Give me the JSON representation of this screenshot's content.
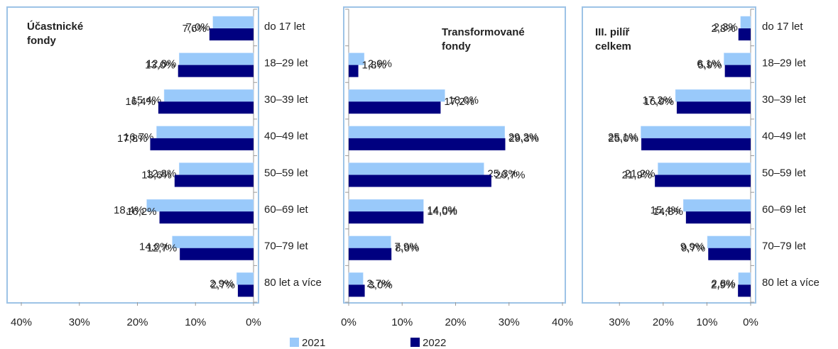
{
  "chart_data": [
    {
      "type": "bar",
      "title": "Účastnické\nfondy",
      "categories": [
        "do 17 let",
        "18–29 let",
        "30–39 let",
        "40–49 let",
        "50–59 let",
        "60–69 let",
        "70–79 let",
        "80 let a více"
      ],
      "series": [
        {
          "name": "2021",
          "color": "#99c9fa",
          "values": [
            7.0,
            12.8,
            15.4,
            16.7,
            12.8,
            18.4,
            14.0,
            2.9
          ],
          "value_labels": [
            "7,0%",
            "12,8%",
            "15,4%",
            "16,7%",
            "12,8%",
            "18,4%",
            "14,0%",
            "2,9%"
          ]
        },
        {
          "name": "2022",
          "color": "#000080",
          "values": [
            7.6,
            13.0,
            16.4,
            17.8,
            13.6,
            16.2,
            12.7,
            2.7
          ],
          "value_labels": [
            "7,6%",
            "13,0%",
            "16,4%",
            "17,8%",
            "13,6%",
            "16,2%",
            "12,7%",
            "2,7%"
          ]
        }
      ],
      "xlim": [
        40,
        0
      ],
      "xticks": [
        {
          "value": 40,
          "label": "40%"
        },
        {
          "value": 30,
          "label": "30%"
        },
        {
          "value": 20,
          "label": "20%"
        },
        {
          "value": 10,
          "label": "10%"
        },
        {
          "value": 0,
          "label": "0%"
        }
      ]
    },
    {
      "type": "bar",
      "title": "Transformované\nfondy",
      "series": [
        {
          "color": "#99c9fa",
          "values": [
            null,
            2.9,
            18.0,
            29.2,
            25.3,
            14.0,
            7.9,
            2.7
          ],
          "value_labels": [
            null,
            "2,9%",
            "18,0%",
            "29,2%",
            "25,3%",
            "14,0%",
            "7,9%",
            "2,7%"
          ]
        },
        {
          "color": "#000080",
          "values": [
            null,
            1.8,
            17.2,
            29.3,
            26.7,
            14.0,
            8.0,
            3.0
          ],
          "value_labels": [
            null,
            "1,8%",
            "17,2%",
            "29,3%",
            "26,7%",
            "14,0%",
            "8,0%",
            "3,0%"
          ]
        }
      ],
      "xlim": [
        0,
        40
      ],
      "xticks": [
        {
          "value": 0,
          "label": "0%"
        },
        {
          "value": 10,
          "label": "10%"
        },
        {
          "value": 20,
          "label": "20%"
        },
        {
          "value": 30,
          "label": "30%"
        },
        {
          "value": 40,
          "label": "40%"
        }
      ]
    },
    {
      "type": "bar",
      "title": "III. pilíř\ncelkem",
      "categories": [
        "do 17 let",
        "18–29 let",
        "30–39 let",
        "40–49 let",
        "50–59 let",
        "60–69 let",
        "70–79 let",
        "80 let a více"
      ],
      "series": [
        {
          "color": "#99c9fa",
          "values": [
            2.3,
            6.1,
            17.2,
            25.1,
            21.2,
            15.4,
            9.9,
            2.8
          ],
          "value_labels": [
            "2,3%",
            "6,1%",
            "17,2%",
            "25,1%",
            "21,2%",
            "15,4%",
            "9,9%",
            "2,8%"
          ]
        },
        {
          "color": "#000080",
          "values": [
            2.8,
            5.9,
            16.9,
            25.0,
            21.9,
            14.8,
            9.7,
            2.9
          ],
          "value_labels": [
            "2,8%",
            "5,9%",
            "16,9%",
            "25,0%",
            "21,9%",
            "14,8%",
            "9,7%",
            "2,9%"
          ]
        }
      ],
      "xlim": [
        38,
        0
      ],
      "xticks": [
        {
          "value": 30,
          "label": "30%"
        },
        {
          "value": 20,
          "label": "20%"
        },
        {
          "value": 10,
          "label": "10%"
        },
        {
          "value": 0,
          "label": "0%"
        }
      ]
    }
  ]
}
